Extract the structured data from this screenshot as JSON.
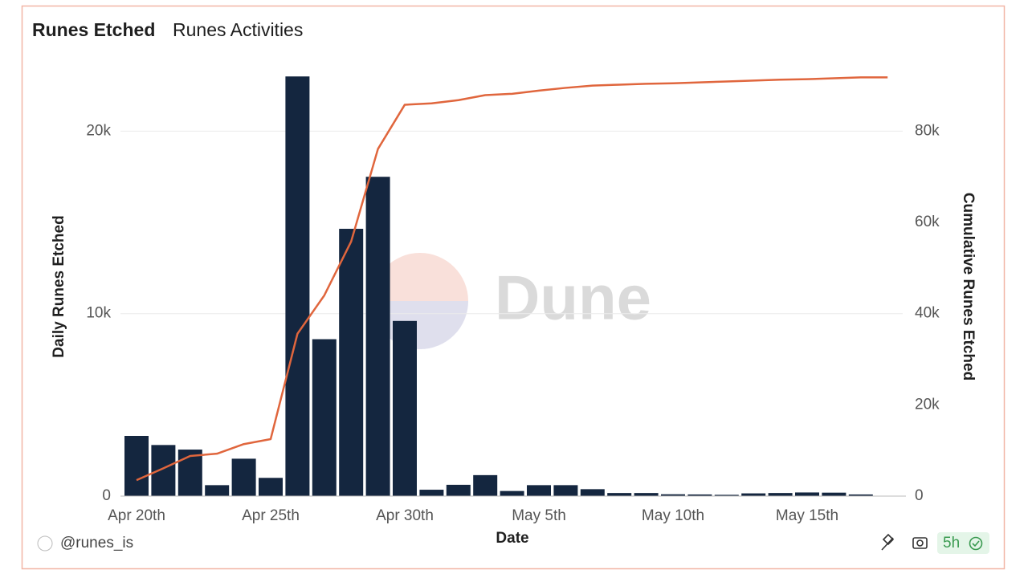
{
  "tabs": {
    "active": "Runes Etched",
    "other": "Runes Activities"
  },
  "chart_data": {
    "type": "bar_line",
    "categories": [
      "Apr 20th",
      null,
      null,
      null,
      null,
      "Apr 25th",
      null,
      null,
      null,
      null,
      "Apr 30th",
      null,
      null,
      null,
      null,
      "May 5th",
      null,
      null,
      null,
      null,
      "May 10th",
      null,
      null,
      null,
      null,
      "May 15th",
      null,
      null,
      null
    ],
    "series": [
      {
        "name": "Daily Runes Etched",
        "color": "#14263f",
        "type": "bar",
        "values": [
          3300,
          2800,
          2550,
          600,
          2050,
          1000,
          23000,
          8600,
          14650,
          17500,
          9600,
          350,
          620,
          1150,
          280,
          600,
          600,
          380,
          170,
          170,
          100,
          90,
          70,
          150,
          170,
          200,
          190,
          90,
          0
        ]
      },
      {
        "name": "Cumulative Runes Etched",
        "color": "#e0663d",
        "type": "line",
        "axis": "y2",
        "values": [
          3500,
          6100,
          8800,
          9300,
          11400,
          12500,
          35600,
          44000,
          55800,
          76100,
          85800,
          86100,
          86800,
          87900,
          88200,
          88900,
          89500,
          90000,
          90200,
          90400,
          90500,
          90700,
          90900,
          91100,
          91300,
          91400,
          91600,
          91800,
          91800
        ]
      }
    ],
    "xlabel": "Date",
    "ylabel": "Daily Runes Etched",
    "y2label": "Cumulative Runes Etched",
    "ylim": [
      0,
      24000
    ],
    "yticks": [
      0,
      {
        "value": 10000,
        "label": "10k"
      },
      {
        "value": 20000,
        "label": "20k"
      }
    ],
    "y2lim": [
      0,
      96000
    ],
    "y2ticks": [
      0,
      {
        "value": 20000,
        "label": "20k"
      },
      {
        "value": 40000,
        "label": "40k"
      },
      {
        "value": 60000,
        "label": "60k"
      },
      {
        "value": 80000,
        "label": "80k"
      }
    ],
    "grid": true
  },
  "watermark": "Dune",
  "footer": {
    "author": "@runes_is",
    "age": "5h"
  }
}
